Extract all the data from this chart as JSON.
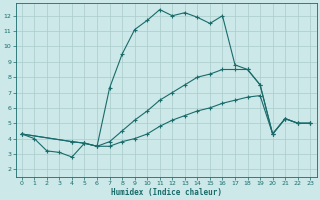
{
  "xlabel": "Humidex (Indice chaleur)",
  "background_color": "#cce8e8",
  "grid_color": "#aacccc",
  "line_color": "#1a6b6b",
  "xlim": [
    -0.5,
    23.5
  ],
  "ylim": [
    1.5,
    12.8
  ],
  "xticks": [
    0,
    1,
    2,
    3,
    4,
    5,
    6,
    7,
    8,
    9,
    10,
    11,
    12,
    13,
    14,
    15,
    16,
    17,
    18,
    19,
    20,
    21,
    22,
    23
  ],
  "yticks": [
    2,
    3,
    4,
    5,
    6,
    7,
    8,
    9,
    10,
    11,
    12
  ],
  "lines": [
    {
      "x": [
        0,
        1,
        2,
        3,
        4,
        5,
        6,
        7,
        8,
        9,
        10,
        11,
        12,
        13,
        14,
        15,
        16,
        17,
        18,
        19,
        20,
        21,
        22,
        23
      ],
      "y": [
        4.3,
        4.0,
        3.2,
        3.1,
        2.8,
        3.7,
        3.5,
        7.3,
        9.5,
        11.1,
        11.7,
        12.4,
        12.0,
        12.2,
        11.9,
        11.5,
        12.0,
        8.8,
        8.5,
        7.5,
        4.3,
        5.3,
        5.0,
        5.0
      ]
    },
    {
      "x": [
        0,
        4,
        5,
        6,
        7,
        8,
        9,
        10,
        11,
        12,
        13,
        14,
        15,
        16,
        17,
        18,
        19,
        20,
        21,
        22,
        23
      ],
      "y": [
        4.3,
        3.8,
        3.7,
        3.5,
        3.8,
        4.5,
        5.2,
        5.8,
        6.5,
        7.0,
        7.5,
        8.0,
        8.2,
        8.5,
        8.5,
        8.5,
        7.5,
        4.3,
        5.3,
        5.0,
        5.0
      ]
    },
    {
      "x": [
        0,
        4,
        5,
        6,
        7,
        8,
        9,
        10,
        11,
        12,
        13,
        14,
        15,
        16,
        17,
        18,
        19,
        20,
        21,
        22,
        23
      ],
      "y": [
        4.3,
        3.8,
        3.7,
        3.5,
        3.5,
        3.8,
        4.0,
        4.3,
        4.8,
        5.2,
        5.5,
        5.8,
        6.0,
        6.3,
        6.5,
        6.7,
        6.8,
        4.3,
        5.3,
        5.0,
        5.0
      ]
    }
  ]
}
